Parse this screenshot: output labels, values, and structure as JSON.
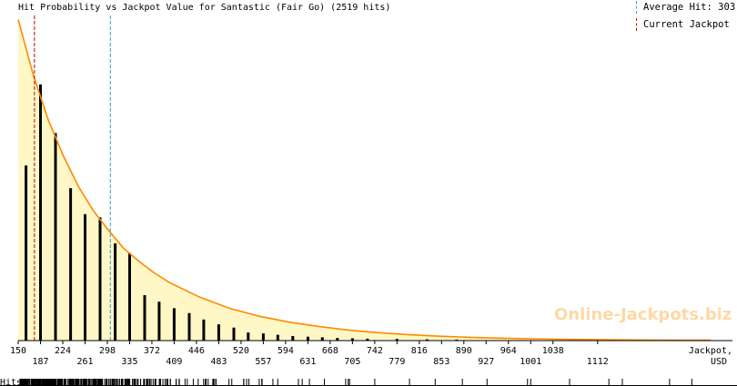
{
  "chart_data": {
    "type": "bar",
    "title": "Hit Probability vs Jackpot Value for Santastic (Fair Go) (2519 hits)",
    "xlabel": "Jackpot, USD",
    "xlabel_parts": [
      "Jackpot,",
      "USD"
    ],
    "xlim": [
      150,
      1305
    ],
    "ylim": [
      0,
      1
    ],
    "x_ticks_top": [
      150,
      224,
      298,
      372,
      446,
      520,
      594,
      668,
      742,
      816,
      890,
      964,
      1038
    ],
    "x_ticks_bottom": [
      187,
      261,
      335,
      409,
      483,
      557,
      631,
      705,
      779,
      853,
      927,
      1001,
      1112
    ],
    "bars": {
      "x": [
        163,
        187,
        212,
        237,
        261,
        286,
        311,
        335,
        360,
        384,
        409,
        434,
        458,
        483,
        508,
        532,
        557,
        581,
        606,
        631,
        655,
        680,
        705,
        730,
        779,
        829,
        878
      ],
      "values": [
        0.54,
        0.79,
        0.64,
        0.47,
        0.39,
        0.38,
        0.3,
        0.27,
        0.14,
        0.12,
        0.1,
        0.085,
        0.065,
        0.05,
        0.04,
        0.025,
        0.022,
        0.018,
        0.014,
        0.012,
        0.01,
        0.008,
        0.007,
        0.006,
        0.005,
        0.004,
        0.003
      ]
    },
    "curve": {
      "x": [
        150,
        175,
        200,
        225,
        250,
        275,
        300,
        325,
        350,
        375,
        400,
        450,
        500,
        550,
        600,
        650,
        700,
        750,
        800,
        850,
        900,
        950,
        1000,
        1050,
        1100,
        1150,
        1200,
        1250,
        1300
      ],
      "values": [
        0.99,
        0.82,
        0.68,
        0.57,
        0.475,
        0.4,
        0.34,
        0.285,
        0.245,
        0.21,
        0.18,
        0.135,
        0.1,
        0.075,
        0.057,
        0.043,
        0.032,
        0.024,
        0.018,
        0.0135,
        0.01,
        0.0075,
        0.0056,
        0.0042,
        0.0031,
        0.0023,
        0.0017,
        0.0013,
        0.001
      ]
    },
    "markers": {
      "average_hit": 303,
      "current_jackpot": 177
    },
    "rug_label": "Hits",
    "legend": {
      "average_label": "Average Hit: 303",
      "current_label": "Current Jackpot",
      "placement": "top-right"
    },
    "colors": {
      "fill": "#fff8c6",
      "curve": "#ff8800",
      "bars": "#000000",
      "average_line": "#3399dd",
      "current_line": "#cc0000",
      "grid": "#e0dcc8"
    },
    "grid": true
  },
  "watermark": "Online-Jackpots.biz"
}
